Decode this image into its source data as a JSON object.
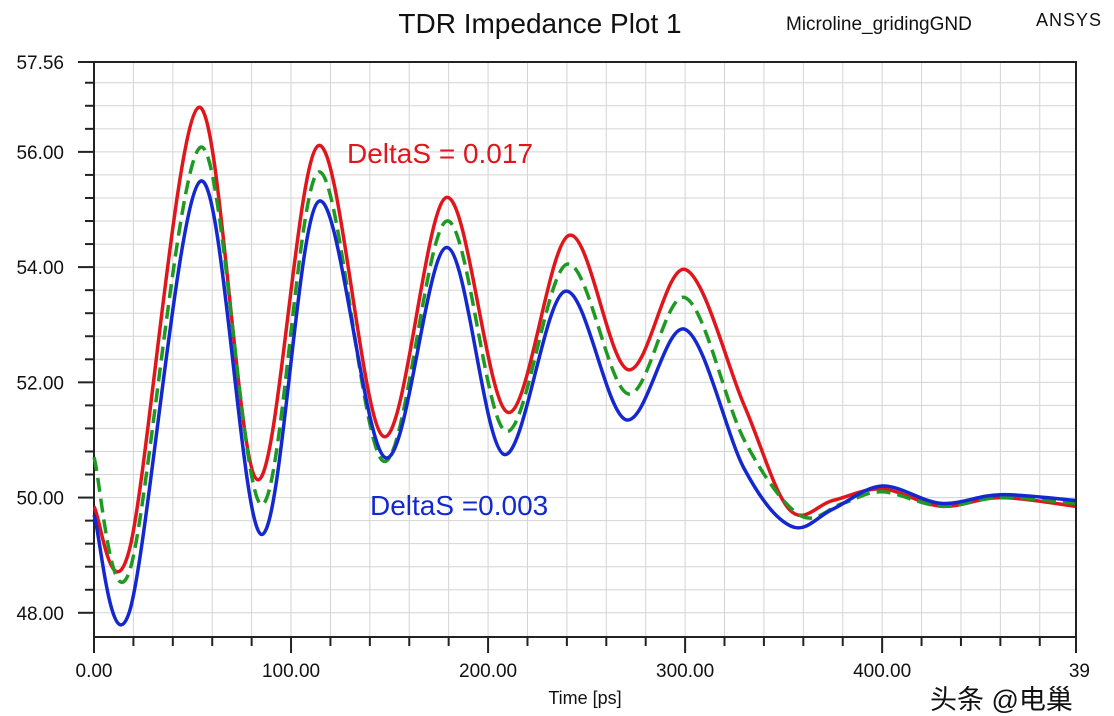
{
  "chart_data": {
    "type": "line",
    "title": "TDR Impedance Plot 1",
    "design_name": "Microline_gridingGND",
    "brand": "ANSYS",
    "xlabel": "Time [ps]",
    "ylabel": "",
    "xlim": [
      0,
      498.39
    ],
    "ylim": [
      47.58,
      57.56
    ],
    "x_ticks": [
      "0.00",
      "100.00",
      "200.00",
      "300.00",
      "400.00"
    ],
    "x_end_label": "39",
    "y_ticks": [
      "48.00",
      "50.00",
      "52.00",
      "54.00",
      "56.00",
      "57.56"
    ],
    "grid": true,
    "annotations": [
      {
        "text": "DeltaS = 0.017",
        "color": "#e0161c"
      },
      {
        "text": "DeltaS =0.003",
        "color": "#1428d0"
      }
    ],
    "series": [
      {
        "color": "#e0161c",
        "style": "solid",
        "x": [
          0,
          18,
          53,
          83,
          114,
          147,
          179,
          210,
          241,
          271,
          300,
          330,
          353,
          375,
          400,
          430,
          460,
          498
        ],
        "y": [
          49.84,
          49.1,
          56.77,
          50.31,
          56.11,
          51.06,
          55.21,
          51.48,
          54.55,
          52.22,
          53.96,
          51.6,
          49.79,
          49.95,
          50.15,
          49.85,
          50.0,
          49.85
        ]
      },
      {
        "color": "#1e9a22",
        "style": "dashed",
        "x": [
          0,
          18,
          54,
          85,
          114,
          147,
          179,
          209,
          240,
          271,
          300,
          330,
          358,
          380,
          400,
          430,
          460,
          498
        ],
        "y": [
          50.7,
          48.72,
          56.08,
          49.88,
          55.65,
          50.63,
          54.8,
          51.15,
          54.05,
          51.8,
          53.47,
          51.0,
          49.7,
          49.9,
          50.1,
          49.85,
          50.0,
          49.9
        ]
      },
      {
        "color": "#1428d0",
        "style": "solid",
        "x": [
          0,
          18,
          54,
          85,
          114,
          148,
          179,
          208,
          239,
          270,
          300,
          330,
          354,
          375,
          400,
          430,
          460,
          498
        ],
        "y": [
          49.7,
          48.02,
          55.49,
          49.36,
          55.14,
          50.69,
          54.34,
          50.75,
          53.58,
          51.35,
          52.92,
          50.5,
          49.5,
          49.8,
          50.2,
          49.9,
          50.05,
          49.95
        ]
      }
    ]
  },
  "watermark": "头条 @电巢"
}
